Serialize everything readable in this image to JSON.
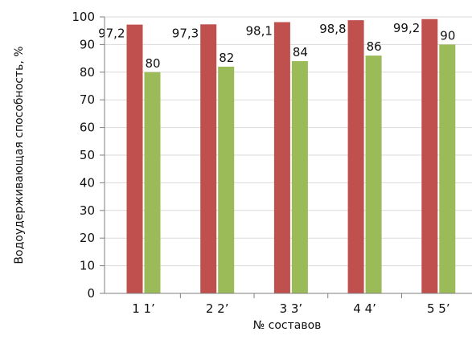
{
  "chart_data": {
    "type": "bar",
    "title": "",
    "xlabel": "№ составов",
    "ylabel": "Водоудерживающая способность, %",
    "categories": [
      "1 1’",
      "2 2’",
      "3 3’",
      "4 4’",
      "5 5’"
    ],
    "series": [
      {
        "color": "#c0504d",
        "values": [
          97.2,
          97.3,
          98.1,
          98.8,
          99.2
        ],
        "labels": [
          "97,2",
          "97,3",
          "98,1",
          "98,8",
          "99,2"
        ]
      },
      {
        "color": "#9bbb59",
        "values": [
          80,
          82,
          84,
          86,
          90
        ],
        "labels": [
          "80",
          "82",
          "84",
          "86",
          "90"
        ]
      }
    ],
    "ylim": [
      0,
      100
    ],
    "yticks": [
      "0",
      "10",
      "20",
      "30",
      "40",
      "50",
      "60",
      "70",
      "80",
      "90",
      "100"
    ],
    "grid": true,
    "legend": "none"
  }
}
